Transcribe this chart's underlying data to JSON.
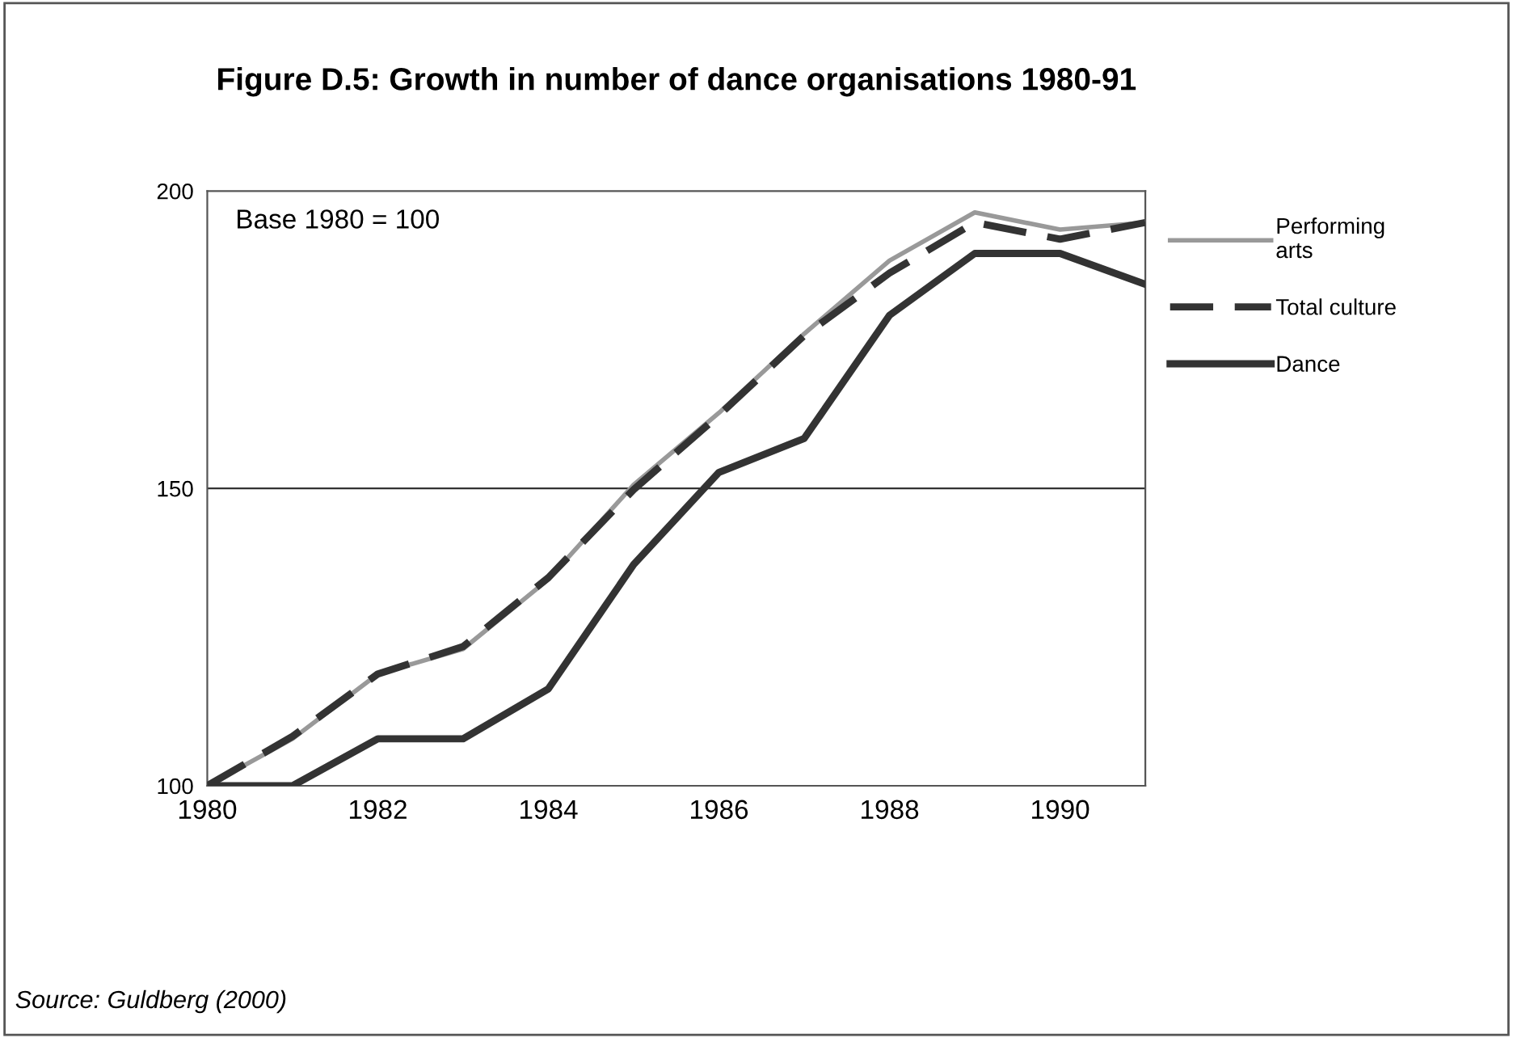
{
  "chart_data": {
    "type": "line",
    "title": "Figure D.5: Growth in number of dance organisations 1980-91",
    "x": [
      1980,
      1981,
      1982,
      1983,
      1984,
      1985,
      1986,
      1987,
      1988,
      1989,
      1990,
      1991
    ],
    "series": [
      {
        "name": "Performing arts",
        "color": "#999999",
        "line_style": "solid",
        "values": [
          100,
          107.9,
          118.8,
          123,
          134.7,
          150.6,
          162.7,
          176,
          188.3,
          196.4,
          193.5,
          194.7
        ]
      },
      {
        "name": "Total culture",
        "color": "#333333",
        "line_style": "dashed",
        "values": [
          100,
          108.3,
          118.8,
          123.4,
          135,
          149.8,
          162.3,
          175.7,
          186.2,
          194.7,
          191.9,
          194.7
        ]
      },
      {
        "name": "Dance",
        "color": "#333333",
        "line_style": "solid",
        "values": [
          100,
          100,
          107.9,
          107.9,
          116.3,
          137.2,
          152.7,
          158.4,
          179.1,
          189.5,
          189.5,
          184.3
        ]
      }
    ],
    "xlim": [
      1980,
      1991
    ],
    "xticks": [
      1980,
      1982,
      1984,
      1986,
      1988,
      1990
    ],
    "ylim": [
      100,
      200
    ],
    "yticks": [
      100,
      150,
      200
    ],
    "grid": "y",
    "legend": "right",
    "marker": "none",
    "annotations": [
      "Base 1980 = 100",
      "Source: Guldberg (2000)"
    ]
  }
}
